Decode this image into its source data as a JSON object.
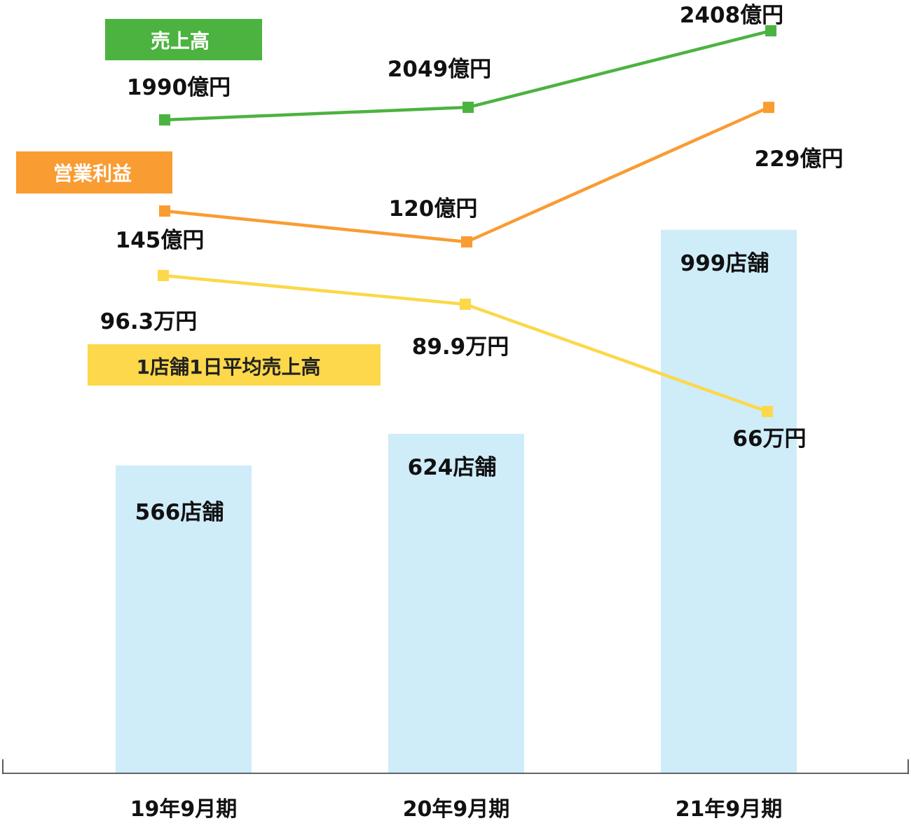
{
  "chart_data": {
    "type": "bar",
    "categories": [
      "19年9月期",
      "20年9月期",
      "21年9月期"
    ],
    "bars": {
      "name": "店舗数",
      "values": [
        566,
        624,
        999
      ],
      "labels": [
        "566店舗",
        "624店舗",
        "999店舗"
      ],
      "color": "#cfecf9"
    },
    "lines": [
      {
        "name": "売上高",
        "unit": "億円",
        "values": [
          1990,
          2049,
          2408
        ],
        "labels": [
          "1990億円",
          "2049億円",
          "2408億円"
        ],
        "color": "#4cb340",
        "legend_text_color": "#ffffff"
      },
      {
        "name": "営業利益",
        "unit": "億円",
        "values": [
          145,
          120,
          229
        ],
        "labels": [
          "145億円",
          "120億円",
          "229億円"
        ],
        "color": "#f99c32",
        "legend_text_color": "#ffffff"
      },
      {
        "name": "1店舗1日平均売上高",
        "unit": "万円",
        "values": [
          96.3,
          89.9,
          66
        ],
        "labels": [
          "96.3万円",
          "89.9万円",
          "66万円"
        ],
        "color": "#fcd84a",
        "legend_text_color": "#222222"
      }
    ],
    "title": "",
    "xlabel": "",
    "ylabel": "",
    "grid": false,
    "axis_color": "#333333"
  }
}
